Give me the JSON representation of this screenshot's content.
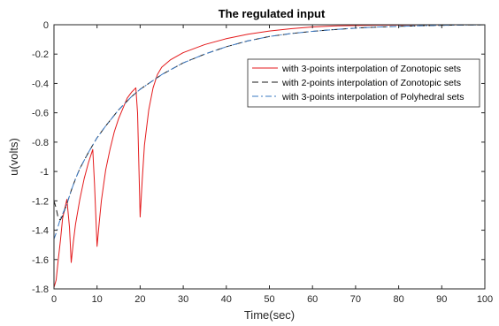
{
  "chart_data": {
    "type": "line",
    "title": "The regulated input",
    "xlabel": "Time(sec)",
    "ylabel": "u(volts)",
    "xlim": [
      0,
      100
    ],
    "ylim": [
      -1.8,
      0
    ],
    "xticks": [
      0,
      10,
      20,
      30,
      40,
      50,
      60,
      70,
      80,
      90,
      100
    ],
    "yticks": [
      -1.8,
      -1.6,
      -1.4,
      -1.2,
      -1,
      -0.8,
      -0.6,
      -0.4,
      -0.2,
      0
    ],
    "xtick_labels": [
      "0",
      "10",
      "20",
      "30",
      "40",
      "50",
      "60",
      "70",
      "80",
      "90",
      "100"
    ],
    "ytick_labels": [
      "-1.8",
      "-1.6",
      "-1.4",
      "-1.2",
      "-1",
      "-0.8",
      "-0.6",
      "-0.4",
      "-0.2",
      "0"
    ],
    "grid": false,
    "legend_position": "upper-right",
    "series": [
      {
        "name": "with 3-points interpolation of Zonotopic sets",
        "color": "#e41a1c",
        "style": "solid",
        "x": [
          0,
          0.5,
          1.0,
          1.5,
          2.0,
          3.0,
          3.6,
          4.0,
          4.5,
          5.0,
          6.0,
          7.0,
          8.0,
          9.0,
          9.4,
          10.0,
          10.5,
          11.0,
          12.0,
          13.0,
          14.0,
          15.0,
          16.0,
          17.0,
          18.0,
          19.0,
          19.4,
          20.0,
          20.5,
          21.0,
          22.0,
          23.0,
          24.0,
          25.0,
          27.0,
          30.0,
          35.0,
          40.0,
          45.0,
          50.0,
          55.0,
          60.0,
          65.0,
          70.0,
          75.0,
          80.0,
          85.0,
          90.0,
          95.0,
          100.0
        ],
        "y": [
          -1.79,
          -1.74,
          -1.6,
          -1.47,
          -1.32,
          -1.19,
          -1.38,
          -1.62,
          -1.48,
          -1.36,
          -1.19,
          -1.05,
          -0.94,
          -0.85,
          -1.08,
          -1.51,
          -1.35,
          -1.2,
          -0.99,
          -0.85,
          -0.73,
          -0.64,
          -0.57,
          -0.5,
          -0.46,
          -0.43,
          -0.6,
          -1.31,
          -1.05,
          -0.82,
          -0.58,
          -0.43,
          -0.34,
          -0.29,
          -0.24,
          -0.19,
          -0.135,
          -0.095,
          -0.065,
          -0.043,
          -0.027,
          -0.015,
          -0.008,
          -0.005,
          -0.003,
          -0.002,
          -0.001,
          -0.001,
          0.0,
          0.0
        ]
      },
      {
        "name": "with 2-points interpolation of Zonotopic sets",
        "color": "#1a1a1a",
        "style": "dashed",
        "x": [
          0,
          0.5,
          1.0,
          1.5,
          2.0,
          3.0,
          4.0,
          5.0,
          6.0,
          8.0,
          10.0,
          12.0,
          15.0,
          18.0,
          20.0,
          25.0,
          30.0,
          35.0,
          40.0,
          45.0,
          50.0,
          55.0,
          60.0,
          65.0,
          70.0,
          75.0,
          80.0,
          85.0,
          90.0,
          95.0,
          100.0
        ],
        "y": [
          -1.2,
          -1.25,
          -1.32,
          -1.33,
          -1.3,
          -1.22,
          -1.13,
          -1.05,
          -0.98,
          -0.87,
          -0.77,
          -0.69,
          -0.58,
          -0.49,
          -0.44,
          -0.34,
          -0.26,
          -0.2,
          -0.15,
          -0.11,
          -0.08,
          -0.06,
          -0.045,
          -0.033,
          -0.023,
          -0.016,
          -0.011,
          -0.007,
          -0.004,
          -0.002,
          -0.001
        ]
      },
      {
        "name": "with 3-points interpolation of Polyhedral sets",
        "color": "#3a78c2",
        "style": "dashdot",
        "x": [
          0,
          0.5,
          1.0,
          1.5,
          2.0,
          3.0,
          4.0,
          5.0,
          6.0,
          8.0,
          10.0,
          12.0,
          15.0,
          18.0,
          20.0,
          25.0,
          30.0,
          35.0,
          40.0,
          45.0,
          50.0,
          55.0,
          60.0,
          65.0,
          70.0,
          75.0,
          80.0,
          85.0,
          90.0,
          95.0,
          100.0
        ],
        "y": [
          -1.46,
          -1.42,
          -1.37,
          -1.32,
          -1.29,
          -1.22,
          -1.13,
          -1.05,
          -0.98,
          -0.87,
          -0.77,
          -0.69,
          -0.58,
          -0.49,
          -0.44,
          -0.34,
          -0.26,
          -0.2,
          -0.15,
          -0.11,
          -0.08,
          -0.06,
          -0.045,
          -0.033,
          -0.023,
          -0.016,
          -0.011,
          -0.007,
          -0.004,
          -0.002,
          -0.001
        ]
      }
    ]
  }
}
